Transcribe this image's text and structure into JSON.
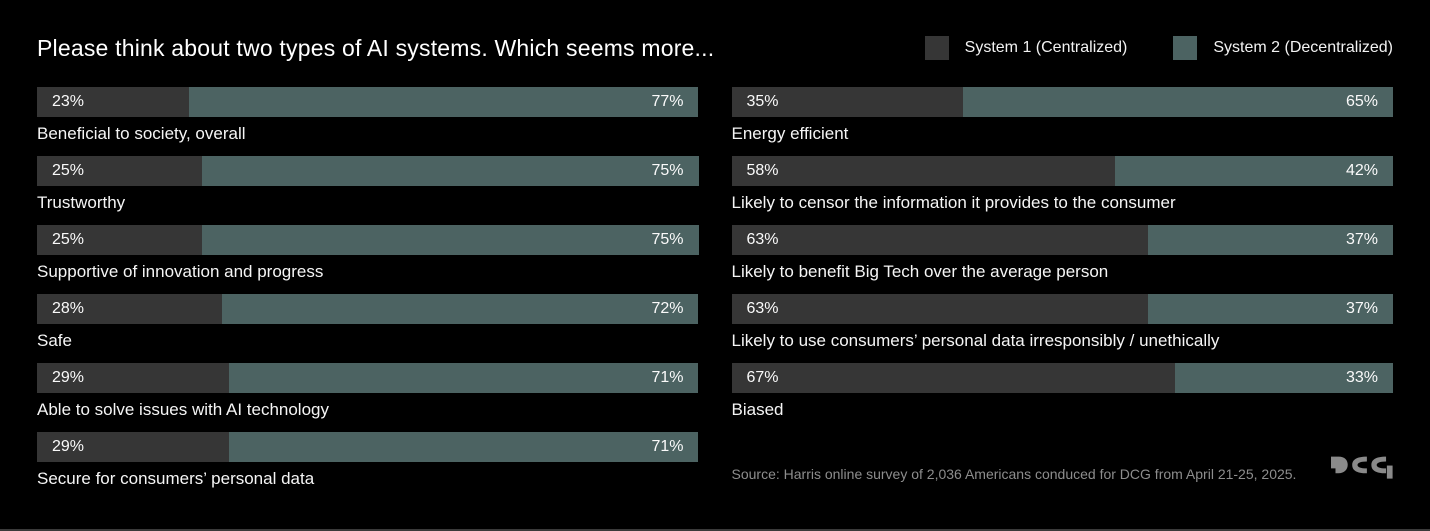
{
  "title": "Please think about two types of AI systems. Which seems more...",
  "legend": {
    "items": [
      {
        "label": "System 1 (Centralized)"
      },
      {
        "label": "System 2 (Decentralized)"
      }
    ]
  },
  "colors": {
    "background": "#000000",
    "system1": "#363636",
    "system2": "#4c6362",
    "percent_text": "#fafafa",
    "category_text": "#f5f5f5",
    "source_text": "#8d8d8d",
    "logo": "#8a8a8a"
  },
  "chart_data": {
    "type": "bar",
    "orientation": "horizontal",
    "stacked": true,
    "unit": "%",
    "axis_range": [
      0,
      100
    ],
    "grid": false,
    "legend_position": "top-right",
    "series_names": [
      "System 1 (Centralized)",
      "System 2 (Decentralized)"
    ],
    "title": "Please think about two types of AI systems. Which seems more...",
    "columns": [
      {
        "rows": [
          {
            "category": "Beneficial to society, overall",
            "values": [
              23,
              77
            ]
          },
          {
            "category": "Trustworthy",
            "values": [
              25,
              75
            ]
          },
          {
            "category": "Supportive of innovation and progress",
            "values": [
              25,
              75
            ]
          },
          {
            "category": "Safe",
            "values": [
              28,
              72
            ]
          },
          {
            "category": "Able to solve issues with AI technology",
            "values": [
              29,
              71
            ]
          },
          {
            "category": "Secure for consumers’ personal data",
            "values": [
              29,
              71
            ]
          }
        ]
      },
      {
        "rows": [
          {
            "category": "Energy efficient",
            "values": [
              35,
              65
            ]
          },
          {
            "category": "Likely to censor the information it provides to the consumer",
            "values": [
              58,
              42
            ]
          },
          {
            "category": "Likely to benefit Big Tech over the average person",
            "values": [
              63,
              37
            ]
          },
          {
            "category": "Likely to use consumers’ personal data irresponsibly / unethically",
            "values": [
              63,
              37
            ]
          },
          {
            "category": "Biased",
            "values": [
              67,
              33
            ]
          }
        ]
      }
    ]
  },
  "footer": {
    "source": "Source: Harris online survey of 2,036 Americans conduced for DCG from April 21-25, 2025.",
    "logo_alt": "DCG"
  }
}
